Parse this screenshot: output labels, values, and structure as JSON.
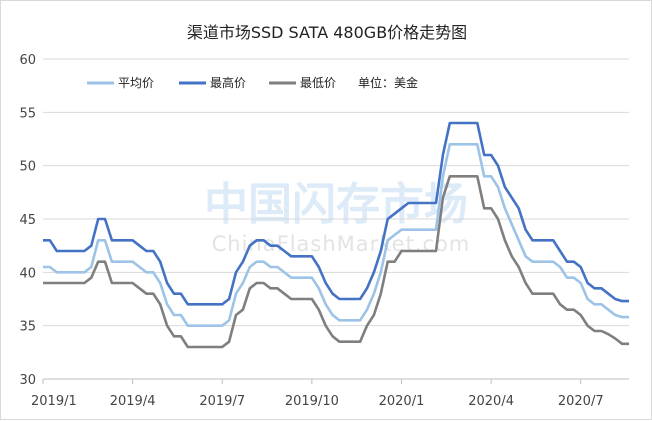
{
  "chart_data": {
    "type": "line",
    "title": "渠道市场SSD SATA 480GB价格走势图",
    "unit_label": "单位：美金",
    "watermark": {
      "main": "中国闪存市场",
      "sub": "ChinaFlashMarket.com"
    },
    "ylim": [
      30,
      60
    ],
    "yticks": [
      30,
      35,
      40,
      45,
      50,
      55,
      60
    ],
    "grid": true,
    "legend_position": "top-left",
    "x_tick_labels": [
      "2019/1",
      "2019/4",
      "2019/7",
      "2019/10",
      "2020/1",
      "2020/4",
      "2020/7"
    ],
    "x_tick_index": [
      0,
      13,
      26,
      39,
      52,
      65,
      78
    ],
    "series": [
      {
        "name": "平均价",
        "color": "#9dc3e6",
        "values": [
          40.5,
          40.5,
          40,
          40,
          40,
          40,
          40,
          40.5,
          43,
          43,
          41,
          41,
          41,
          41,
          40.5,
          40,
          40,
          39,
          37,
          36,
          36,
          35,
          35,
          35,
          35,
          35,
          35,
          35.5,
          38,
          39,
          40.5,
          41,
          41,
          40.5,
          40.5,
          40,
          39.5,
          39.5,
          39.5,
          39.5,
          38.5,
          37,
          36,
          35.5,
          35.5,
          35.5,
          35.5,
          36.5,
          38,
          40,
          43,
          43.5,
          44,
          44,
          44,
          44,
          44,
          44,
          49,
          52,
          52,
          52,
          52,
          52,
          49,
          49,
          48,
          46,
          44.5,
          43,
          41.5,
          41,
          41,
          41,
          41,
          40.5,
          39.5,
          39.5,
          39,
          37.5,
          37,
          37,
          36.5,
          36,
          35.8,
          35.8
        ]
      },
      {
        "name": "最高价",
        "color": "#4472c4",
        "values": [
          43,
          43,
          42,
          42,
          42,
          42,
          42,
          42.5,
          45,
          45,
          43,
          43,
          43,
          43,
          42.5,
          42,
          42,
          41,
          39,
          38,
          38,
          37,
          37,
          37,
          37,
          37,
          37,
          37.5,
          40,
          41,
          42.5,
          43,
          43,
          42.5,
          42.5,
          42,
          41.5,
          41.5,
          41.5,
          41.5,
          40.5,
          39,
          38,
          37.5,
          37.5,
          37.5,
          37.5,
          38.5,
          40,
          42,
          45,
          45.5,
          46,
          46.5,
          46.5,
          46.5,
          46.5,
          46.5,
          51,
          54,
          54,
          54,
          54,
          54,
          51,
          51,
          50,
          48,
          47,
          46,
          44,
          43,
          43,
          43,
          43,
          42,
          41,
          41,
          40.5,
          39,
          38.5,
          38.5,
          38,
          37.5,
          37.3,
          37.3
        ]
      },
      {
        "name": "最低价",
        "color": "#7f7f7f",
        "values": [
          39,
          39,
          39,
          39,
          39,
          39,
          39,
          39.5,
          41,
          41,
          39,
          39,
          39,
          39,
          38.5,
          38,
          38,
          37,
          35,
          34,
          34,
          33,
          33,
          33,
          33,
          33,
          33,
          33.5,
          36,
          36.5,
          38.5,
          39,
          39,
          38.5,
          38.5,
          38,
          37.5,
          37.5,
          37.5,
          37.5,
          36.5,
          35,
          34,
          33.5,
          33.5,
          33.5,
          33.5,
          35,
          36,
          38,
          41,
          41,
          42,
          42,
          42,
          42,
          42,
          42,
          47,
          49,
          49,
          49,
          49,
          49,
          46,
          46,
          45,
          43,
          41.5,
          40.5,
          39,
          38,
          38,
          38,
          38,
          37,
          36.5,
          36.5,
          36,
          35,
          34.5,
          34.5,
          34.2,
          33.8,
          33.3,
          33.3
        ]
      }
    ]
  }
}
